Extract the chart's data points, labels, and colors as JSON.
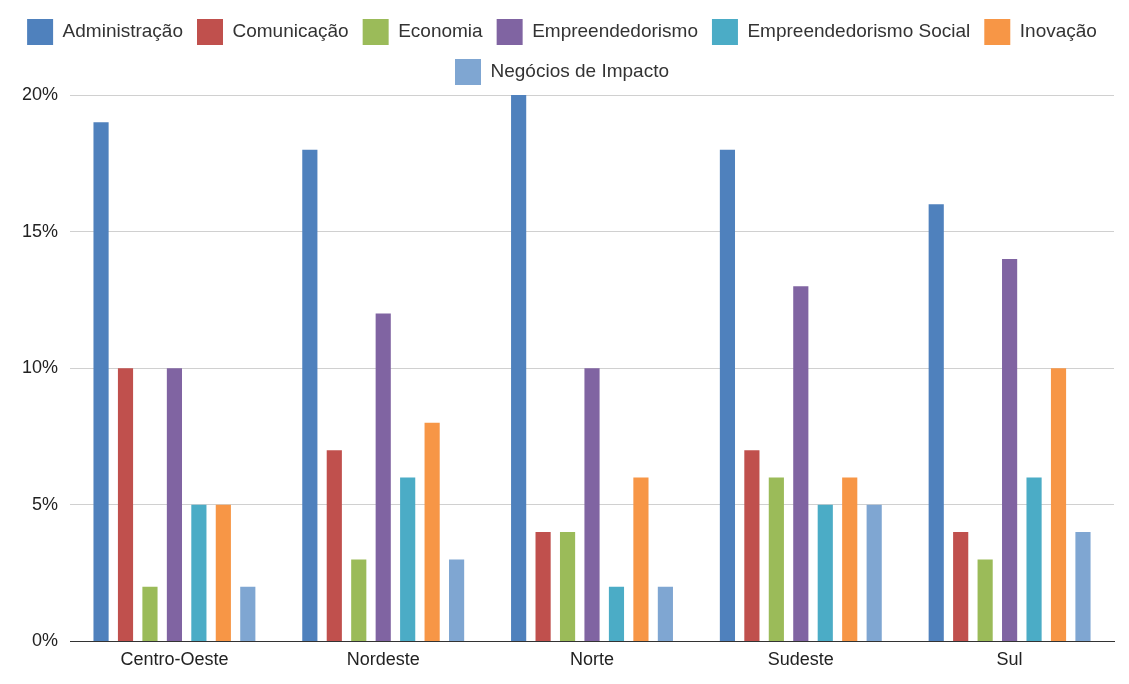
{
  "chart_data": {
    "type": "bar",
    "categories": [
      "Centro-Oeste",
      "Nordeste",
      "Norte",
      "Sudeste",
      "Sul"
    ],
    "series": [
      {
        "name": "Administração",
        "color": "#4f81bd",
        "values": [
          19,
          18,
          20,
          18,
          16
        ]
      },
      {
        "name": "Comunicação",
        "color": "#c0504d",
        "values": [
          10,
          7,
          4,
          7,
          4
        ]
      },
      {
        "name": "Economia",
        "color": "#9bbb59",
        "values": [
          2,
          3,
          4,
          6,
          3
        ]
      },
      {
        "name": "Empreendedorismo",
        "color": "#8064a2",
        "values": [
          10,
          12,
          10,
          13,
          14
        ]
      },
      {
        "name": "Empreendedorismo Social",
        "color": "#4bacc6",
        "values": [
          5,
          6,
          2,
          5,
          6
        ]
      },
      {
        "name": "Inovação",
        "color": "#f79646",
        "values": [
          5,
          8,
          6,
          6,
          10
        ]
      },
      {
        "name": "Negócios de Impacto",
        "color": "#7fa6d2",
        "values": [
          2,
          3,
          2,
          5,
          4
        ]
      }
    ],
    "ylim": [
      0,
      20
    ],
    "yticks": [
      {
        "value": 0,
        "label": "0%"
      },
      {
        "value": 5,
        "label": "5%"
      },
      {
        "value": 10,
        "label": "10%"
      },
      {
        "value": 15,
        "label": "15%"
      },
      {
        "value": 20,
        "label": "20%"
      }
    ],
    "grid": "y",
    "legend": "top"
  }
}
